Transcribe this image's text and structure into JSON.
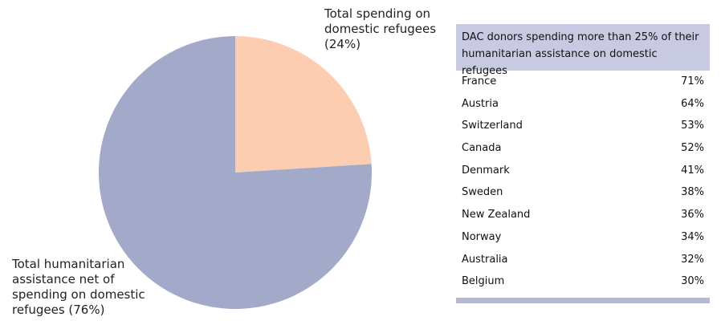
{
  "chart_data": {
    "type": "pie",
    "categories": [
      "Total spending on domestic refugees (24%)",
      "Total humanitarian assistance net of spending on domestic refugees (76%)"
    ],
    "values": [
      24,
      76
    ],
    "colors": [
      "#fccdb1",
      "#a3a9c9"
    ]
  },
  "table": {
    "title": "DAC donors spending more than 25% of their humanitarian assistance on domestic refugees",
    "rows": [
      [
        "France",
        "71%"
      ],
      [
        "Austria",
        "64%"
      ],
      [
        "Switzerland",
        "53%"
      ],
      [
        "Canada",
        "52%"
      ],
      [
        "Denmark",
        "41%"
      ],
      [
        "Sweden",
        "38%"
      ],
      [
        "New Zealand",
        "36%"
      ],
      [
        "Norway",
        "34%"
      ],
      [
        "Australia",
        "32%"
      ],
      [
        "Belgium",
        "30%"
      ]
    ]
  }
}
